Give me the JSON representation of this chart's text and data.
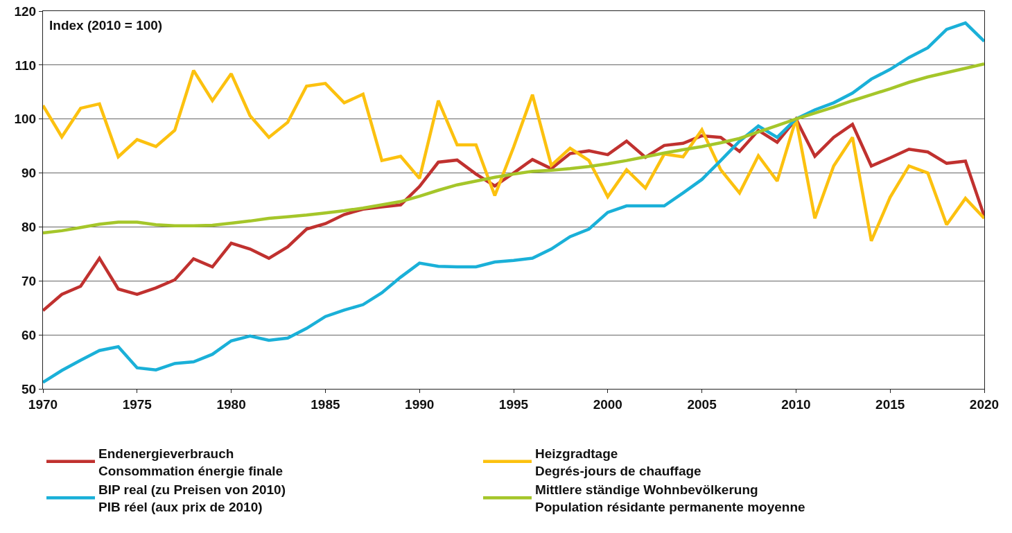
{
  "chart_data": {
    "type": "line",
    "ylabel": "Index (2010 = 100)",
    "x": [
      1970,
      1971,
      1972,
      1973,
      1974,
      1975,
      1976,
      1977,
      1978,
      1979,
      1980,
      1981,
      1982,
      1983,
      1984,
      1985,
      1986,
      1987,
      1988,
      1989,
      1990,
      1991,
      1992,
      1993,
      1994,
      1995,
      1996,
      1997,
      1998,
      1999,
      2000,
      2001,
      2002,
      2003,
      2004,
      2005,
      2006,
      2007,
      2008,
      2009,
      2010,
      2011,
      2012,
      2013,
      2014,
      2015,
      2016,
      2017,
      2018,
      2019,
      2020
    ],
    "xlim": [
      1970,
      2020
    ],
    "xticks": [
      1970,
      1975,
      1980,
      1985,
      1990,
      1995,
      2000,
      2005,
      2010,
      2015,
      2020
    ],
    "ylim": [
      50,
      120
    ],
    "yticks": [
      50,
      60,
      70,
      80,
      90,
      100,
      110,
      120
    ],
    "grid": "y",
    "legend": "bottom",
    "marker": "none",
    "line_style": "solid",
    "series": [
      {
        "name": "Endenergieverbrauch\nConsommation énergie finale",
        "color": "#c0312f",
        "values": [
          64.5,
          67.5,
          69,
          74.2,
          68.5,
          67.5,
          68.7,
          70.2,
          74.1,
          72.6,
          77,
          75.9,
          74.2,
          76.3,
          79.6,
          80.6,
          82.3,
          83.3,
          83.7,
          84.1,
          87.5,
          92,
          92.4,
          89.8,
          87.6,
          90,
          92.5,
          90.8,
          93.6,
          94.1,
          93.4,
          95.9,
          92.9,
          95.1,
          95.5,
          96.9,
          96.6,
          94,
          97.9,
          95.7,
          100,
          93.1,
          96.6,
          99,
          91.3,
          92.8,
          94.4,
          93.9,
          91.8,
          92.2,
          82
        ]
      },
      {
        "name": "Heizgradtage\nDegrés-jours de chauffage",
        "color": "#fcc10f",
        "values": [
          102.5,
          96.7,
          102,
          102.8,
          93,
          96.2,
          94.9,
          97.9,
          109,
          103.4,
          108.4,
          100.6,
          96.6,
          99.4,
          106.1,
          106.6,
          103,
          104.6,
          92.3,
          93.1,
          89,
          103.4,
          95.2,
          95.2,
          85.8,
          94.8,
          104.5,
          91.4,
          94.6,
          92.3,
          85.6,
          90.6,
          87.2,
          93.5,
          93,
          98,
          90.6,
          86.3,
          93.2,
          88.5,
          100,
          81.6,
          91.3,
          96.6,
          77.4,
          85.5,
          91.3,
          90,
          80.4,
          85.3,
          81.6
        ]
      },
      {
        "name": "BIP real (zu Preisen von 2010)\nPIB réel (aux prix de 2010)",
        "color": "#1ab0d8",
        "values": [
          51.2,
          53.4,
          55.3,
          57.1,
          57.8,
          53.9,
          53.5,
          54.7,
          55,
          56.4,
          58.9,
          59.8,
          59,
          59.4,
          61.2,
          63.4,
          64.6,
          65.6,
          67.8,
          70.7,
          73.3,
          72.7,
          72.6,
          72.6,
          73.5,
          73.8,
          74.2,
          75.9,
          78.2,
          79.6,
          82.7,
          83.9,
          83.9,
          83.9,
          86.3,
          88.8,
          92.3,
          95.9,
          98.7,
          96.6,
          100,
          101.7,
          103,
          104.8,
          107.4,
          109.2,
          111.4,
          113.2,
          116.6,
          117.8,
          114.4
        ]
      },
      {
        "name": "Mittlere ständige Wohnbevölkerung\nPopulation résidante permanente moyenne",
        "color": "#a5c62a",
        "values": [
          78.9,
          79.3,
          79.9,
          80.5,
          80.9,
          80.9,
          80.4,
          80.2,
          80.2,
          80.3,
          80.7,
          81.1,
          81.6,
          81.9,
          82.2,
          82.6,
          83,
          83.5,
          84.1,
          84.7,
          85.7,
          86.8,
          87.8,
          88.5,
          89.2,
          89.8,
          90.3,
          90.5,
          90.8,
          91.2,
          91.7,
          92.3,
          93,
          93.7,
          94.3,
          94.9,
          95.6,
          96.4,
          97.6,
          98.8,
          100,
          101.1,
          102.2,
          103.4,
          104.5,
          105.6,
          106.8,
          107.8,
          108.6,
          109.4,
          110.2
        ]
      }
    ]
  }
}
